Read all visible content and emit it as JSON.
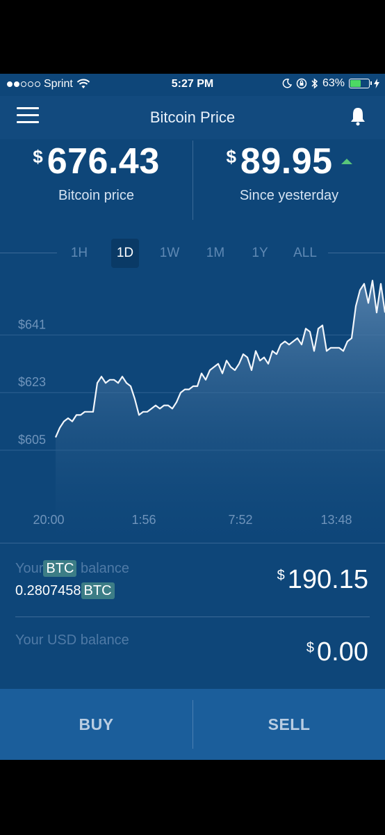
{
  "status_bar": {
    "carrier": "Sprint",
    "time": "5:27 PM",
    "battery_pct": "63%",
    "battery_level": 0.63,
    "signal_bars_filled": 2,
    "signal_bars_total": 5
  },
  "nav": {
    "title": "Bitcoin Price",
    "menu_icon": "hamburger-menu-icon",
    "bell_icon": "bell-icon"
  },
  "price": {
    "currency_symbol": "$",
    "value": "676.43",
    "caption": "Bitcoin price"
  },
  "change": {
    "currency_symbol": "$",
    "value": "89.95",
    "caption": "Since yesterday",
    "direction": "up",
    "color": "#59c67a"
  },
  "ranges": [
    {
      "label": "1H",
      "active": false
    },
    {
      "label": "1D",
      "active": true
    },
    {
      "label": "1W",
      "active": false
    },
    {
      "label": "1M",
      "active": false
    },
    {
      "label": "1Y",
      "active": false
    },
    {
      "label": "ALL",
      "active": false
    }
  ],
  "chart_data": {
    "type": "area",
    "y_ticks": [
      "$641",
      "$623",
      "$605"
    ],
    "x_ticks": [
      "20:00",
      "1:56",
      "7:52",
      "13:48"
    ],
    "ylim": [
      590,
      660
    ],
    "grid": true,
    "series": [
      {
        "values": [
          609,
          612,
          614,
          615,
          614,
          616,
          616,
          617,
          617,
          617,
          626,
          628,
          626,
          627,
          627,
          626,
          628,
          626,
          625,
          621,
          616,
          617,
          617,
          618,
          619,
          618,
          619,
          619,
          618,
          620,
          623,
          624,
          624,
          625,
          625,
          629,
          627,
          630,
          631,
          632,
          629,
          633,
          631,
          630,
          632,
          635,
          634,
          630,
          636,
          633,
          634,
          632,
          636,
          635,
          638,
          639,
          638,
          639,
          640,
          638,
          643,
          642,
          636,
          643,
          644,
          636,
          637,
          637,
          637,
          636,
          639,
          640,
          650,
          655,
          657,
          651,
          658,
          648,
          657,
          648
        ]
      }
    ]
  },
  "btc_balance": {
    "label_prefix": "Your",
    "label_unit": "BTC",
    "label_suffix": "balance",
    "amount": "0.2807458",
    "unit": "BTC",
    "usd_symbol": "$",
    "usd_value": "190.15"
  },
  "usd_balance": {
    "label": "Your USD balance",
    "symbol": "$",
    "value": "0.00"
  },
  "actions": {
    "buy": "BUY",
    "sell": "SELL"
  }
}
